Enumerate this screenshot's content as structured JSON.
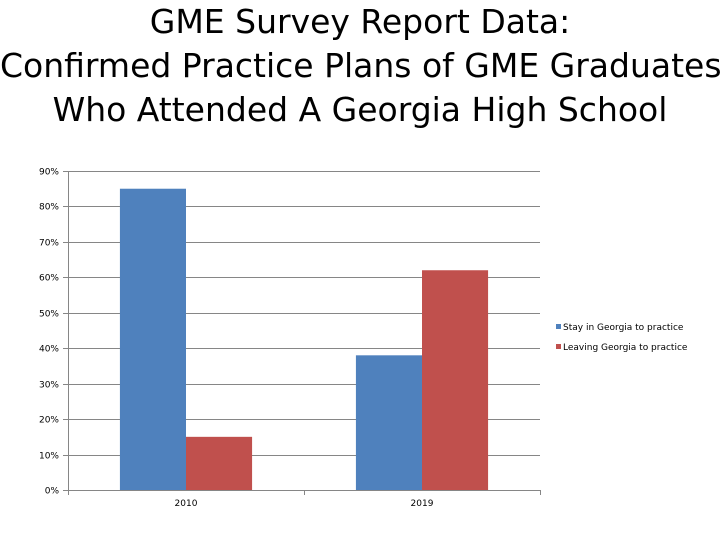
{
  "chart_data": {
    "type": "bar",
    "title_lines": [
      "GME Survey Report Data:",
      "Confirmed Practice Plans of GME Graduates",
      "Who Attended A Georgia High School"
    ],
    "categories": [
      "2010",
      "2019"
    ],
    "series": [
      {
        "name": "Stay in Georgia to practice",
        "color": "#4F81BD",
        "values": [
          0.85,
          0.38
        ]
      },
      {
        "name": "Leaving Georgia to practice",
        "color": "#C0504D",
        "values": [
          0.15,
          0.62
        ]
      }
    ],
    "ylim": [
      0,
      0.9
    ],
    "yticks": [
      {
        "value": 0.0,
        "label": "0%"
      },
      {
        "value": 0.1,
        "label": "10%"
      },
      {
        "value": 0.2,
        "label": "20%"
      },
      {
        "value": 0.3,
        "label": "30%"
      },
      {
        "value": 0.4,
        "label": "40%"
      },
      {
        "value": 0.5,
        "label": "50%"
      },
      {
        "value": 0.6,
        "label": "60%"
      },
      {
        "value": 0.7,
        "label": "70%"
      },
      {
        "value": 0.8,
        "label": "80%"
      },
      {
        "value": 0.9,
        "label": "90%"
      }
    ],
    "grid": true,
    "legend_position": "right"
  }
}
